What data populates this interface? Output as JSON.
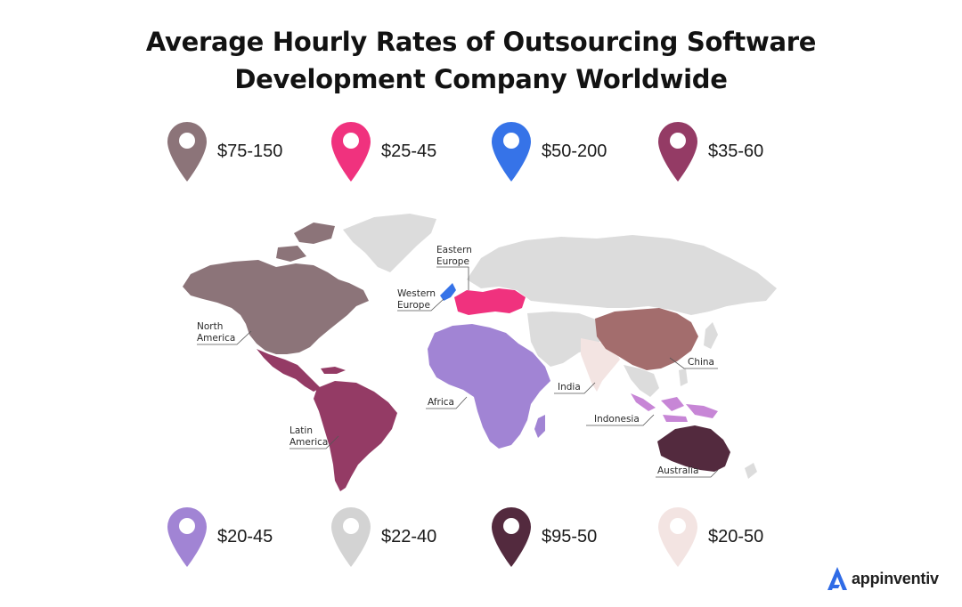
{
  "title": {
    "line1": "Average Hourly Rates of Outsourcing Software",
    "line2": "Development Company Worldwide"
  },
  "legend_top": [
    {
      "label": "$75-150",
      "color": "#8c7479"
    },
    {
      "label": "$25-45",
      "color": "#f0327e"
    },
    {
      "label": "$50-200",
      "color": "#3673e8"
    },
    {
      "label": "$35-60",
      "color": "#943b65"
    }
  ],
  "legend_bottom": [
    {
      "label": "$20-45",
      "color": "#a184d4"
    },
    {
      "label": "$22-40",
      "color": "#d3d3d3"
    },
    {
      "label": "$95-50",
      "color": "#532a3e"
    },
    {
      "label": "$20-50",
      "color": "#f3e4e2"
    }
  ],
  "regions": {
    "north_america": {
      "line1": "North",
      "line2": "America",
      "color": "#8c7479"
    },
    "latin_america": {
      "line1": "Latin",
      "line2": "America",
      "color": "#943b65"
    },
    "western_europe": {
      "line1": "Western",
      "line2": "Europe",
      "color": "#3673e8"
    },
    "eastern_europe": {
      "line1": "Eastern",
      "line2": "Europe",
      "color": "#f0327e"
    },
    "africa": {
      "label": "Africa",
      "color": "#a184d4"
    },
    "india": {
      "label": "India",
      "color": "#f3e4e2"
    },
    "china": {
      "label": "China",
      "color": "#a36d6d"
    },
    "indonesia": {
      "label": "Indonesia",
      "color": "#c786d6"
    },
    "australia": {
      "label": "Australia",
      "color": "#532a3e"
    }
  },
  "other_land_color": "#dcdcdc",
  "brand": {
    "name": "appinventiv",
    "icon": "appinventiv-logo-icon",
    "color": "#2f6be6"
  }
}
